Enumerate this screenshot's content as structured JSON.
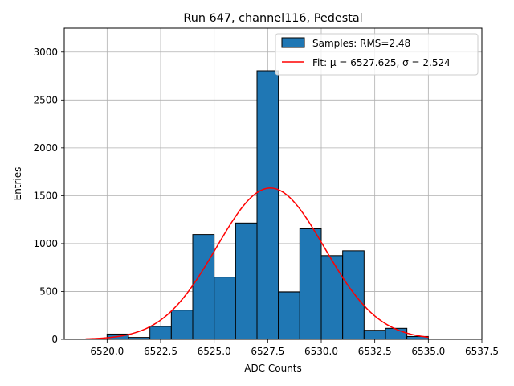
{
  "chart_data": {
    "type": "bar",
    "title": "Run 647, channel116, Pedestal",
    "xlabel": "ADC Counts",
    "ylabel": "Entries",
    "xlim": [
      6518.0,
      6537.5
    ],
    "ylim": [
      0,
      3250
    ],
    "xticks": [
      6520.0,
      6522.5,
      6525.0,
      6527.5,
      6530.0,
      6532.5,
      6535.0,
      6537.5
    ],
    "xtick_labels": [
      "6520.0",
      "6522.5",
      "6525.0",
      "6527.5",
      "6530.0",
      "6532.5",
      "6535.0",
      "6537.5"
    ],
    "yticks": [
      0,
      500,
      1000,
      1500,
      2000,
      2500,
      3000
    ],
    "ytick_labels": [
      "0",
      "500",
      "1000",
      "1500",
      "2000",
      "2500",
      "3000"
    ],
    "grid": true,
    "legend_position": "top-right",
    "series": [
      {
        "name": "Samples: RMS=2.48",
        "kind": "histogram",
        "color": "#1f77b4",
        "edgecolor": "#000000",
        "bins": [
          {
            "x0": 6520.0,
            "x1": 6521.0,
            "value": 55
          },
          {
            "x0": 6521.0,
            "x1": 6522.0,
            "value": 20
          },
          {
            "x0": 6522.0,
            "x1": 6523.0,
            "value": 135
          },
          {
            "x0": 6523.0,
            "x1": 6524.0,
            "value": 305
          },
          {
            "x0": 6524.0,
            "x1": 6525.0,
            "value": 1095
          },
          {
            "x0": 6525.0,
            "x1": 6526.0,
            "value": 650
          },
          {
            "x0": 6526.0,
            "x1": 6527.0,
            "value": 1215
          },
          {
            "x0": 6527.0,
            "x1": 6528.0,
            "value": 2805
          },
          {
            "x0": 6528.0,
            "x1": 6529.0,
            "value": 495
          },
          {
            "x0": 6529.0,
            "x1": 6530.0,
            "value": 1155
          },
          {
            "x0": 6530.0,
            "x1": 6531.0,
            "value": 875
          },
          {
            "x0": 6531.0,
            "x1": 6532.0,
            "value": 925
          },
          {
            "x0": 6532.0,
            "x1": 6533.0,
            "value": 95
          },
          {
            "x0": 6533.0,
            "x1": 6534.0,
            "value": 115
          },
          {
            "x0": 6534.0,
            "x1": 6535.0,
            "value": 30
          }
        ]
      },
      {
        "name": "Fit: μ = 6527.625, σ = 2.524",
        "kind": "gaussian",
        "color": "#ff0000",
        "mu": 6527.625,
        "sigma": 2.524,
        "amplitude": 1580,
        "x_range": [
          6519.0,
          6535.0
        ]
      }
    ]
  }
}
